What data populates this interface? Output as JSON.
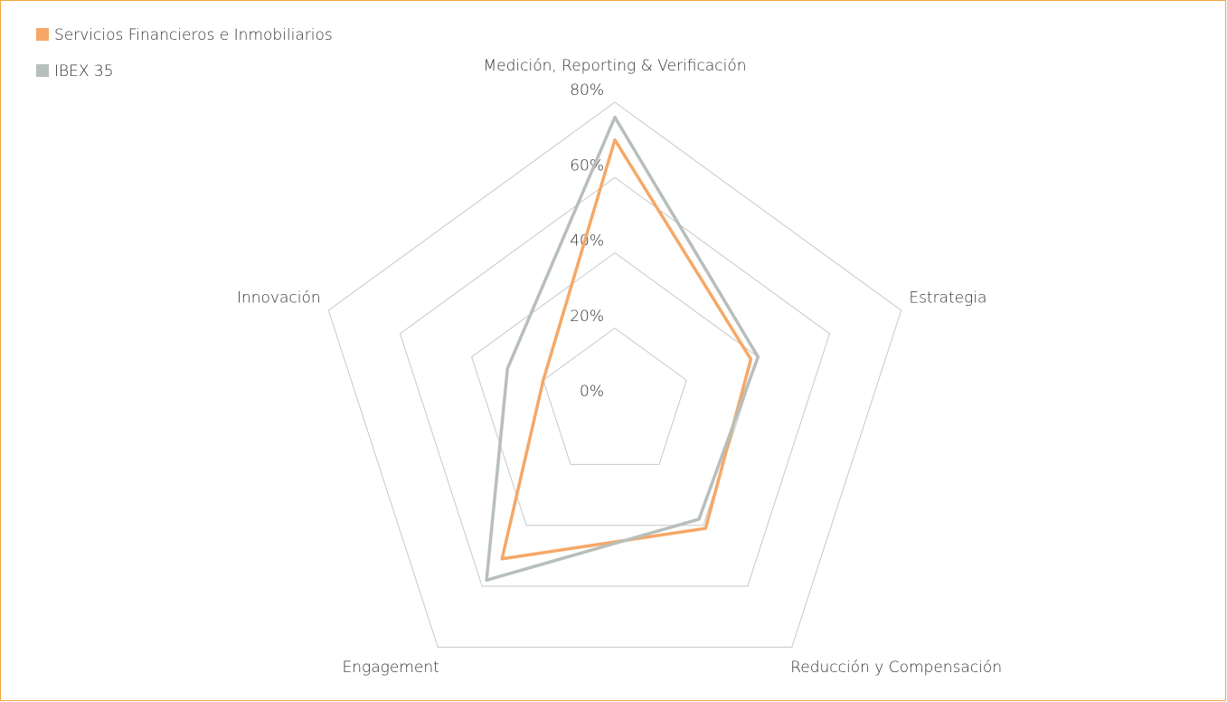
{
  "chart_data": {
    "type": "radar",
    "categories": [
      "Medición, Reporting & Verificación",
      "Estrategia",
      "Reducción y Compensación",
      "Engagement",
      "Innovación"
    ],
    "series": [
      {
        "name": "Servicios Financieros e Inmobiliarios",
        "color": "#f5a867",
        "values": [
          70,
          38,
          41,
          51,
          20
        ]
      },
      {
        "name": "IBEX 35",
        "color": "#b7bfba",
        "values": [
          76,
          40,
          38,
          58,
          30
        ]
      }
    ],
    "rlim": [
      0,
      80
    ],
    "rticks": [
      {
        "value": 0,
        "label": "0%"
      },
      {
        "value": 20,
        "label": "20%"
      },
      {
        "value": 40,
        "label": "40%"
      },
      {
        "value": 60,
        "label": "60%"
      },
      {
        "value": 80,
        "label": "80%"
      }
    ],
    "grid": true
  }
}
